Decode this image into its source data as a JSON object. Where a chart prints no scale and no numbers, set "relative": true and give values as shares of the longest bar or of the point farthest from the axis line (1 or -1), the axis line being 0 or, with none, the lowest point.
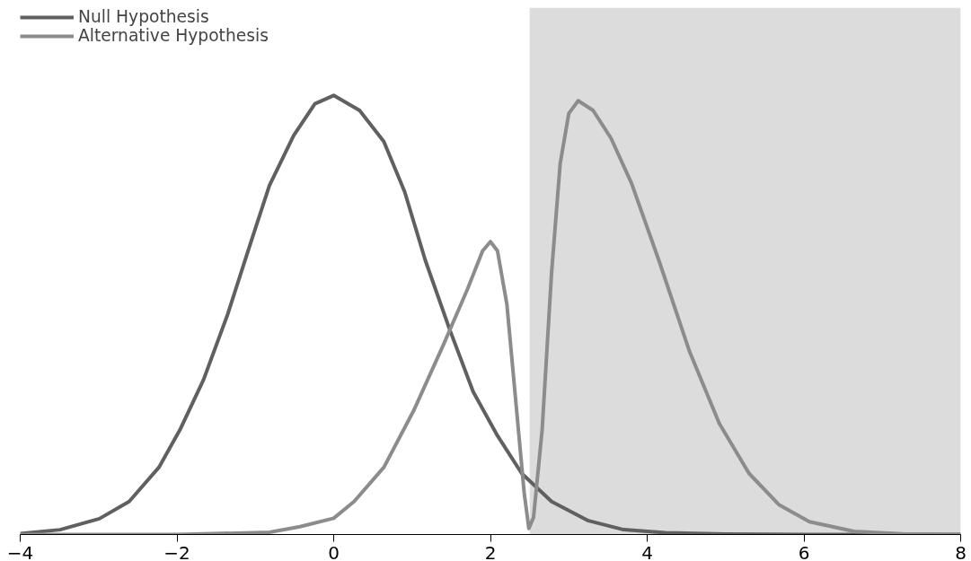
{
  "chart_data": {
    "type": "line",
    "relative": true,
    "xlim": [
      -4,
      8
    ],
    "xticks": [
      -4,
      -2,
      0,
      2,
      4,
      6,
      8
    ],
    "grid": false,
    "legend": "top left",
    "bands": [
      {
        "axis": "x",
        "from": 2.5,
        "to": 8,
        "color": "#dcdcdc"
      }
    ],
    "series": [
      {
        "name": "Null Hypothesis",
        "color": "#606060",
        "x": [
          -4,
          -3.49,
          -2.99,
          -2.61,
          -2.23,
          -1.96,
          -1.66,
          -1.35,
          -1.08,
          -0.82,
          -0.51,
          -0.24,
          0,
          0.33,
          0.64,
          0.905,
          1.17,
          1.48,
          1.78,
          2.09,
          2.4,
          2.78,
          3.24,
          3.7,
          4.23,
          5,
          6,
          7,
          8
        ],
        "values": [
          0.002,
          0.011,
          0.036,
          0.075,
          0.153,
          0.239,
          0.353,
          0.503,
          0.653,
          0.795,
          0.909,
          0.981,
          1.0,
          0.966,
          0.895,
          0.781,
          0.624,
          0.467,
          0.325,
          0.225,
          0.139,
          0.075,
          0.032,
          0.011,
          0.004,
          0.001,
          0,
          0,
          0
        ]
      },
      {
        "name": "Alternative Hypothesis",
        "color": "#8c8c8c",
        "x": [
          -4,
          -2,
          -0.82,
          -0.43,
          0,
          0.26,
          0.64,
          1.02,
          1.4,
          1.71,
          1.9,
          2.0,
          2.09,
          2.21,
          2.32,
          2.43,
          2.49,
          2.55,
          2.66,
          2.78,
          2.89,
          3.0,
          3.12,
          3.31,
          3.54,
          3.8,
          4.15,
          4.54,
          4.92,
          5.3,
          5.68,
          6.07,
          6.64,
          7.3,
          8
        ],
        "values": [
          0,
          0,
          0.005,
          0.018,
          0.037,
          0.075,
          0.153,
          0.282,
          0.432,
          0.56,
          0.646,
          0.667,
          0.646,
          0.524,
          0.31,
          0.096,
          0.014,
          0.039,
          0.239,
          0.596,
          0.845,
          0.959,
          0.988,
          0.966,
          0.902,
          0.8,
          0.624,
          0.417,
          0.253,
          0.139,
          0.068,
          0.029,
          0.007,
          0.001,
          0
        ]
      }
    ]
  }
}
